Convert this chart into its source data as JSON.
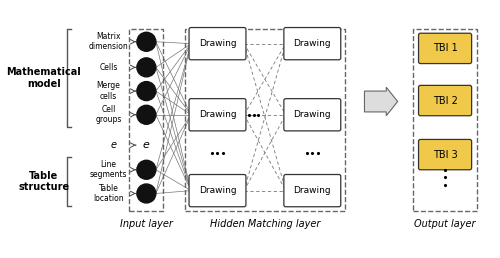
{
  "figsize": [
    5.0,
    2.58
  ],
  "dpi": 100,
  "bg_color": "#ffffff",
  "math_label": "Mathematical\nmodel",
  "table_label": "Table\nstructure",
  "input_labels_math": [
    "Matrix\ndimension",
    "Cells",
    "Merge\ncells",
    "Cell\ngroups"
  ],
  "input_labels_table": [
    "Line\nsegments",
    "Table\nlocation"
  ],
  "e_label": "e",
  "layer_labels": [
    "Input layer",
    "Hidden Matching layer",
    "Output layer"
  ],
  "node_color": "#111111",
  "box_color_hidden": "#ffffff",
  "box_color_output": "#f0c84a",
  "box_border_color": "#333333",
  "line_color": "#777777",
  "arrow_color": "#444444",
  "bracket_color": "#555555",
  "dash_border_color": "#666666"
}
